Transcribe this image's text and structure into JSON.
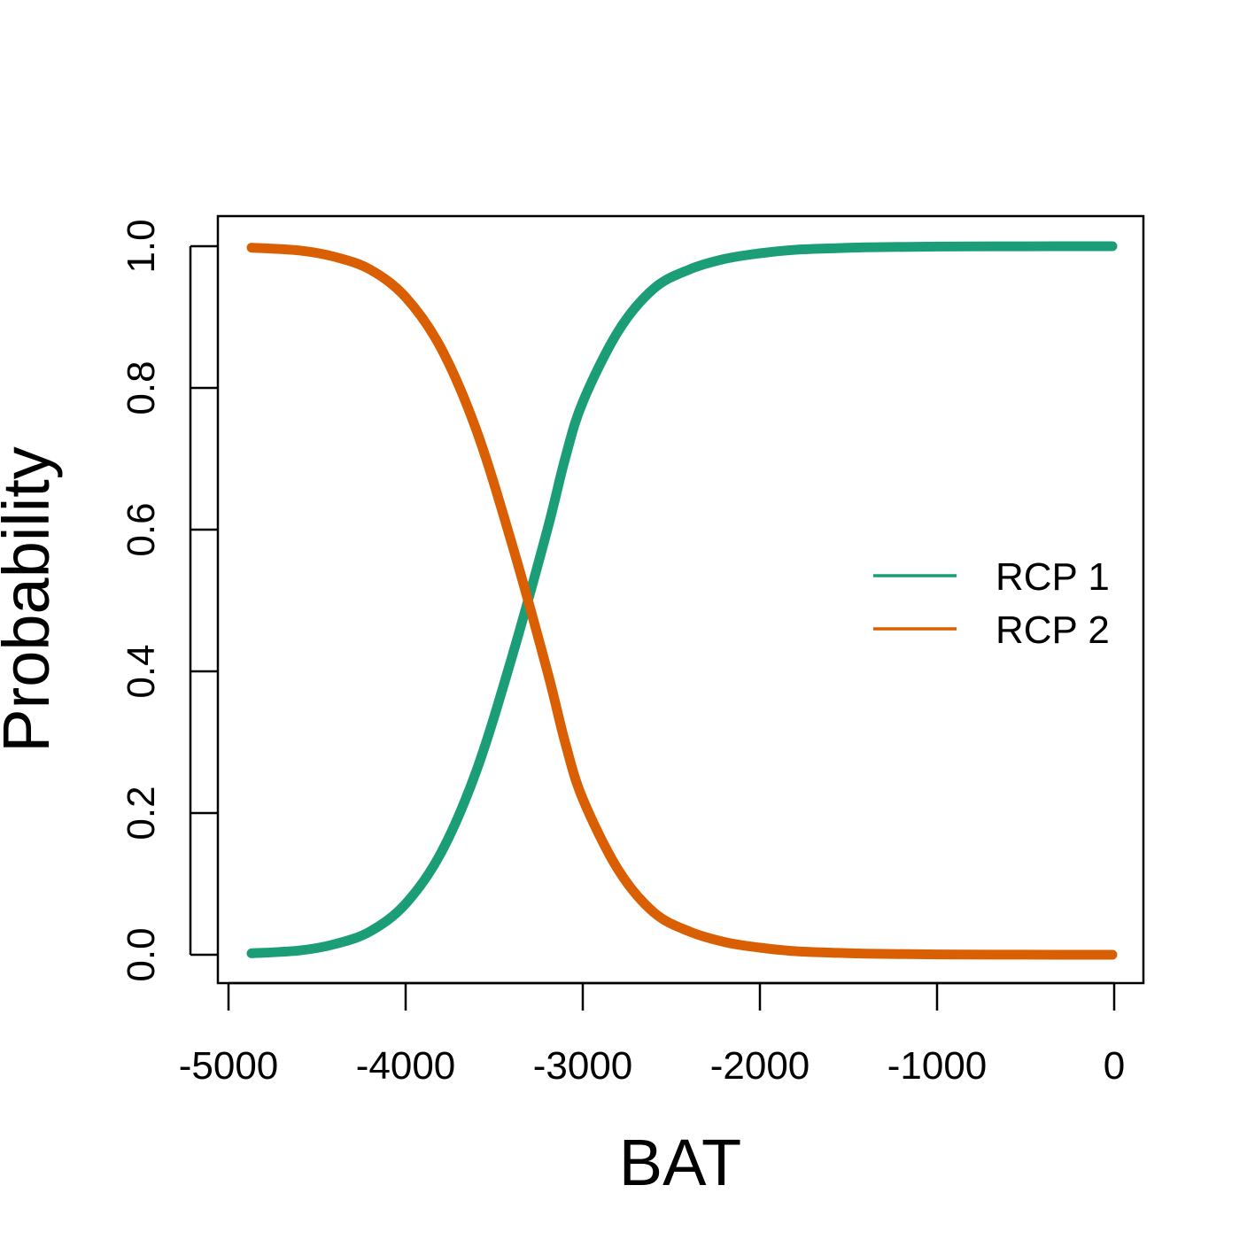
{
  "chart_data": {
    "type": "line",
    "title": "",
    "xlabel": "BAT",
    "ylabel": "Probability",
    "xlim": [
      -5000,
      0
    ],
    "ylim": [
      0,
      1
    ],
    "xticks": [
      -5000,
      -4000,
      -3000,
      -2000,
      -1000,
      0
    ],
    "xtick_labels": [
      "-5000",
      "-4000",
      "-3000",
      "-2000",
      "-1000",
      "0"
    ],
    "yticks": [
      0,
      0.2,
      0.4,
      0.6,
      0.8,
      1
    ],
    "ytick_labels": [
      "0.0",
      "0.2",
      "0.4",
      "0.6",
      "0.8",
      "1.0"
    ],
    "grid": false,
    "legend_position": "right",
    "series": [
      {
        "name": "RCP 1",
        "color": "#1b9e77",
        "x": [
          -4870,
          -4600,
          -4400,
          -4200,
          -4000,
          -3800,
          -3600,
          -3400,
          -3200,
          -3100,
          -3000,
          -2800,
          -2600,
          -2400,
          -2200,
          -2000,
          -1800,
          -1600,
          -1400,
          -1000,
          -500,
          -10
        ],
        "y": [
          0.002,
          0.006,
          0.015,
          0.033,
          0.072,
          0.144,
          0.26,
          0.42,
          0.6,
          0.7,
          0.78,
          0.88,
          0.94,
          0.967,
          0.982,
          0.99,
          0.995,
          0.997,
          0.9985,
          0.9995,
          0.9999,
          1.0
        ]
      },
      {
        "name": "RCP 2",
        "color": "#d95f02",
        "x": [
          -4870,
          -4600,
          -4400,
          -4200,
          -4000,
          -3800,
          -3600,
          -3400,
          -3200,
          -3100,
          -3000,
          -2800,
          -2600,
          -2400,
          -2200,
          -2000,
          -1800,
          -1600,
          -1400,
          -1000,
          -500,
          -10
        ],
        "y": [
          0.998,
          0.994,
          0.985,
          0.967,
          0.928,
          0.856,
          0.74,
          0.58,
          0.4,
          0.3,
          0.22,
          0.12,
          0.06,
          0.033,
          0.018,
          0.01,
          0.005,
          0.003,
          0.0015,
          0.0005,
          0.0001,
          0.0
        ]
      }
    ]
  }
}
